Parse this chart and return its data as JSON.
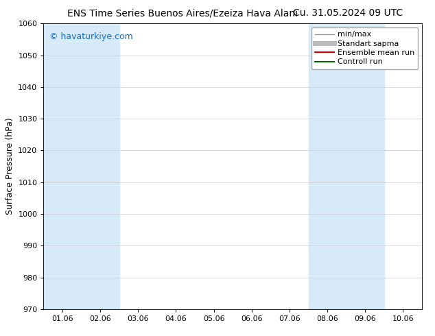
{
  "title": "ENS Time Series Buenos Aires/Ezeiza Hava Alanı",
  "date_label": "Cu. 31.05.2024 09 UTC",
  "ylabel": "Surface Pressure (hPa)",
  "ylim": [
    970,
    1060
  ],
  "yticks": [
    970,
    980,
    990,
    1000,
    1010,
    1020,
    1030,
    1040,
    1050,
    1060
  ],
  "xtick_labels": [
    "01.06",
    "02.06",
    "03.06",
    "04.06",
    "05.06",
    "06.06",
    "07.06",
    "08.06",
    "09.06",
    "10.06"
  ],
  "watermark": "© havaturkiye.com",
  "watermark_color": "#1a6bb5",
  "background_color": "#ffffff",
  "shaded_cols": [
    0,
    1,
    7,
    8
  ],
  "shade_color": "#d6eaf8",
  "legend_items": [
    {
      "label": "min/max",
      "color": "#999999",
      "lw": 1.0
    },
    {
      "label": "Standart sapma",
      "color": "#bbbbbb",
      "lw": 5
    },
    {
      "label": "Ensemble mean run",
      "color": "#dd0000",
      "lw": 1.5
    },
    {
      "label": "Controll run",
      "color": "#006600",
      "lw": 1.5
    }
  ],
  "title_fontsize": 10,
  "date_fontsize": 10,
  "axis_label_fontsize": 9,
  "tick_fontsize": 8,
  "legend_fontsize": 8,
  "watermark_fontsize": 9
}
